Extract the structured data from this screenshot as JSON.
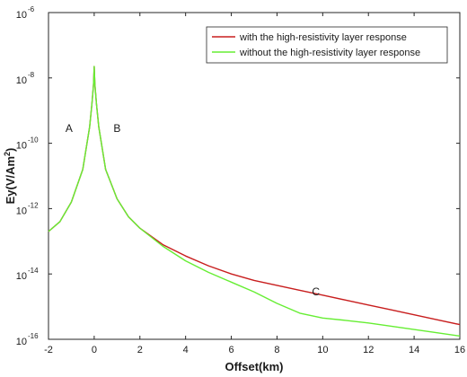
{
  "chart_data": {
    "type": "line",
    "xlabel": "Offset(km)",
    "ylabel": "Ey(V/Am²)",
    "ylabel_base": "Ey(V/Am",
    "ylabel_sup": "2",
    "ylabel_close": ")",
    "xlim": [
      -2,
      16
    ],
    "ylim_exponents": [
      -16,
      -6
    ],
    "yscale": "log",
    "grid": false,
    "legend_position": "top-right",
    "x_ticks": [
      "-2",
      "0",
      "2",
      "4",
      "6",
      "8",
      "10",
      "12",
      "14",
      "16"
    ],
    "y_ticks": [
      {
        "base": "10",
        "exp": "-16"
      },
      {
        "base": "10",
        "exp": "-14"
      },
      {
        "base": "10",
        "exp": "-12"
      },
      {
        "base": "10",
        "exp": "-10"
      },
      {
        "base": "10",
        "exp": "-8"
      },
      {
        "base": "10",
        "exp": "-6"
      }
    ],
    "annotations": [
      {
        "text": "A",
        "x": -1.1,
        "y_exp": -9.55
      },
      {
        "text": "B",
        "x": 1.0,
        "y_exp": -9.55
      },
      {
        "text": "C",
        "x": 9.7,
        "y_exp": -14.55
      }
    ],
    "series": [
      {
        "name": "with the high-resistivity layer response",
        "color": "#c81e1e",
        "points_log10": [
          [
            -2,
            -12.7
          ],
          [
            -1.5,
            -12.4
          ],
          [
            -1,
            -11.8
          ],
          [
            -0.5,
            -10.8
          ],
          [
            -0.2,
            -9.5
          ],
          [
            -0.1,
            -8.8
          ],
          [
            -0.03,
            -8.2
          ],
          [
            0,
            -7.65
          ],
          [
            0.03,
            -8.2
          ],
          [
            0.1,
            -8.8
          ],
          [
            0.2,
            -9.5
          ],
          [
            0.5,
            -10.8
          ],
          [
            1,
            -11.7
          ],
          [
            1.5,
            -12.25
          ],
          [
            2,
            -12.6
          ],
          [
            3,
            -13.1
          ],
          [
            4,
            -13.45
          ],
          [
            5,
            -13.75
          ],
          [
            6,
            -14.0
          ],
          [
            7,
            -14.2
          ],
          [
            8,
            -14.35
          ],
          [
            9,
            -14.5
          ],
          [
            10,
            -14.65
          ],
          [
            11,
            -14.8
          ],
          [
            12,
            -14.95
          ],
          [
            13,
            -15.1
          ],
          [
            14,
            -15.25
          ],
          [
            15,
            -15.4
          ],
          [
            16,
            -15.55
          ]
        ]
      },
      {
        "name": "without the high-resistivity layer response",
        "color": "#66ee33",
        "points_log10": [
          [
            -2,
            -12.7
          ],
          [
            -1.5,
            -12.4
          ],
          [
            -1,
            -11.8
          ],
          [
            -0.5,
            -10.8
          ],
          [
            -0.2,
            -9.5
          ],
          [
            -0.1,
            -8.8
          ],
          [
            -0.03,
            -8.2
          ],
          [
            0,
            -7.65
          ],
          [
            0.03,
            -8.2
          ],
          [
            0.1,
            -8.8
          ],
          [
            0.2,
            -9.5
          ],
          [
            0.5,
            -10.8
          ],
          [
            1,
            -11.7
          ],
          [
            1.5,
            -12.25
          ],
          [
            2,
            -12.6
          ],
          [
            3,
            -13.15
          ],
          [
            4,
            -13.6
          ],
          [
            5,
            -13.95
          ],
          [
            6,
            -14.25
          ],
          [
            7,
            -14.55
          ],
          [
            8,
            -14.9
          ],
          [
            9,
            -15.2
          ],
          [
            10,
            -15.35
          ],
          [
            11,
            -15.42
          ],
          [
            12,
            -15.5
          ],
          [
            13,
            -15.6
          ],
          [
            14,
            -15.7
          ],
          [
            15,
            -15.8
          ],
          [
            16,
            -15.9
          ]
        ]
      }
    ]
  }
}
